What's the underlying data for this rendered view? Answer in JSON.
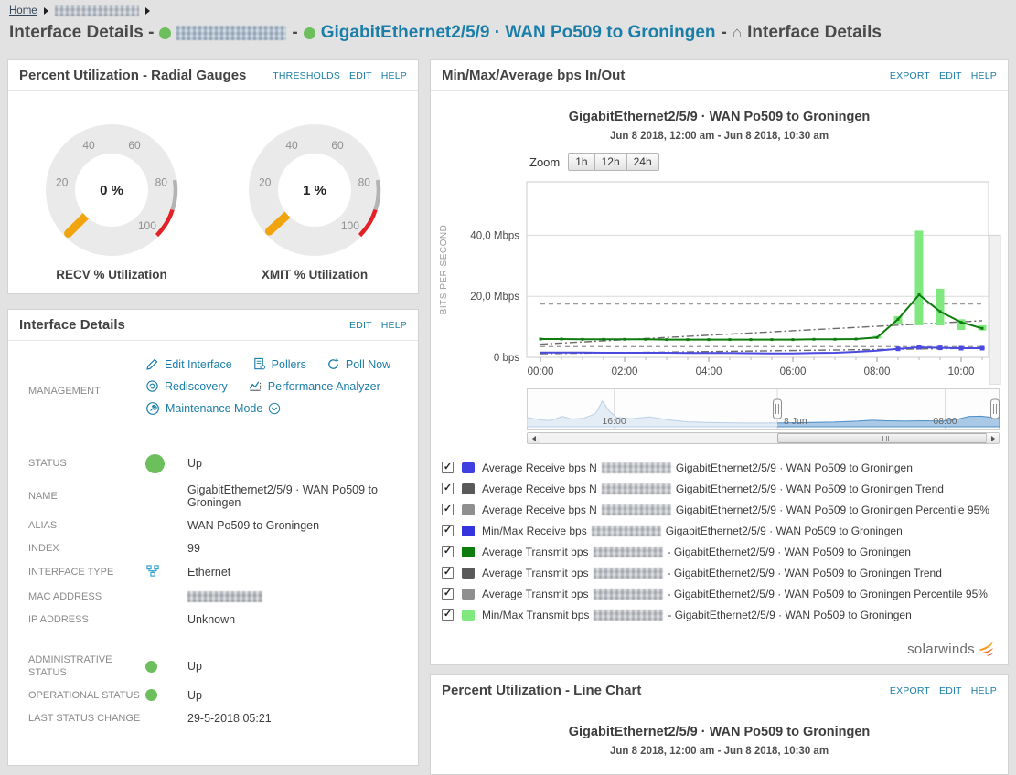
{
  "breadcrumb": {
    "home": "Home"
  },
  "page_title": {
    "prefix": "Interface Details - ",
    "sep": " - ",
    "interface": "GigabitEthernet2/5/9 · WAN Po509 to Groningen",
    "suffix": "Interface Details"
  },
  "panels": {
    "gauges": {
      "title": "Percent Utilization - Radial Gauges",
      "links": [
        "THRESHOLDS",
        "EDIT",
        "HELP"
      ],
      "ticks": [
        20,
        40,
        60,
        80,
        100
      ],
      "ring_color": "#eaeaea",
      "needle_color": "#f2a40f",
      "segments": [
        {
          "from": 80,
          "to": 90,
          "color": "#b3b3b3"
        },
        {
          "from": 90,
          "to": 100,
          "color": "#e42127"
        }
      ],
      "items": [
        {
          "value": 0,
          "value_label": "0 %",
          "caption": "RECV % Utilization"
        },
        {
          "value": 1,
          "value_label": "1 %",
          "caption": "XMIT % Utilization"
        }
      ]
    },
    "details": {
      "title": "Interface Details",
      "links": [
        "EDIT",
        "HELP"
      ],
      "management": {
        "label": "MANAGEMENT",
        "actions": [
          "Edit Interface",
          "Pollers",
          "Poll Now",
          "Rediscovery",
          "Performance Analyzer",
          "Maintenance Mode"
        ]
      },
      "rows": [
        {
          "label": "STATUS",
          "icon": "dot-big",
          "value": "Up",
          "cls": "row-status"
        },
        {
          "label": "NAME",
          "icon": "",
          "value": "GigabitEthernet2/5/9 · WAN Po509 to Groningen"
        },
        {
          "label": "ALIAS",
          "icon": "",
          "value": "WAN Po509 to Groningen"
        },
        {
          "label": "INDEX",
          "icon": "",
          "value": "99"
        },
        {
          "label": "INTERFACE TYPE",
          "icon": "ethernet",
          "value": "Ethernet"
        },
        {
          "label": "MAC ADDRESS",
          "icon": "",
          "value": "",
          "redacted": true
        },
        {
          "label": "IP ADDRESS",
          "icon": "",
          "value": "Unknown"
        },
        {
          "label": "ADMINISTRATIVE STATUS",
          "icon": "dot-sm",
          "value": "Up",
          "cls": "sect-gap"
        },
        {
          "label": "OPERATIONAL STATUS",
          "icon": "dot-sm",
          "value": "Up"
        },
        {
          "label": "LAST STATUS CHANGE",
          "icon": "",
          "value": "29-5-2018 05:21"
        }
      ]
    },
    "bps": {
      "title": "Min/Max/Average bps In/Out",
      "links": [
        "EXPORT",
        "EDIT",
        "HELP"
      ],
      "chart_title": "GigabitEthernet2/5/9 · WAN Po509 to Groningen",
      "chart_subtitle": "Jun 8 2018, 12:00 am - Jun 8 2018, 10:30 am",
      "zoom_label": "Zoom",
      "zoom_options": [
        "1h",
        "12h",
        "24h"
      ],
      "logo_text": "solarwinds",
      "legend": [
        {
          "checked": true,
          "color": "#4040e0",
          "prefix": "Average Receive bps N",
          "suffix": "GigabitEthernet2/5/9 · WAN Po509 to Groningen"
        },
        {
          "checked": true,
          "color": "#595959",
          "prefix": "Average Receive bps N",
          "suffix": "GigabitEthernet2/5/9 · WAN Po509 to Groningen Trend"
        },
        {
          "checked": true,
          "color": "#8f8f8f",
          "prefix": "Average Receive bps N",
          "suffix": "GigabitEthernet2/5/9 · WAN Po509 to Groningen Percentile 95%"
        },
        {
          "checked": true,
          "color": "#3434dd",
          "prefix": "Min/Max Receive bps ",
          "suffix": "GigabitEthernet2/5/9 · WAN Po509 to Groningen"
        },
        {
          "checked": true,
          "color": "#0c7c0c",
          "prefix": "Average Transmit bps ",
          "suffix": "- GigabitEthernet2/5/9 · WAN Po509 to Groningen"
        },
        {
          "checked": true,
          "color": "#595959",
          "prefix": "Average Transmit bps ",
          "suffix": "- GigabitEthernet2/5/9 · WAN Po509 to Groningen Trend"
        },
        {
          "checked": true,
          "color": "#8f8f8f",
          "prefix": "Average Transmit bps ",
          "suffix": "- GigabitEthernet2/5/9 · WAN Po509 to Groningen Percentile 95%"
        },
        {
          "checked": true,
          "color": "#7fe97f",
          "prefix": "Min/Max Transmit bps",
          "suffix": "- GigabitEthernet2/5/9 · WAN Po509 to Groningen"
        }
      ]
    },
    "util": {
      "title": "Percent Utilization - Line Chart",
      "links": [
        "EXPORT",
        "EDIT",
        "HELP"
      ],
      "chart_title": "GigabitEthernet2/5/9 · WAN Po509 to Groningen",
      "chart_subtitle": "Jun 8 2018, 12:00 am - Jun 8 2018, 10:30 am"
    }
  },
  "chart_data": [
    {
      "type": "line",
      "title": "GigabitEthernet2/5/9 · WAN Po509 to Groningen",
      "subtitle": "Jun 8 2018, 12:00 am - Jun 8 2018, 10:30 am",
      "ylabel": "BITS PER SECOND",
      "ylim": [
        0,
        57.5
      ],
      "yticks": [
        {
          "v": 0,
          "label": "0 bps"
        },
        {
          "v": 20,
          "label": "20,0 Mbps"
        },
        {
          "v": 40,
          "label": "40,0 Mbps"
        }
      ],
      "xlim_hours": [
        0,
        10.5
      ],
      "xticks": [
        {
          "t": 0,
          "label": "00:00"
        },
        {
          "t": 2,
          "label": "02:00"
        },
        {
          "t": 4,
          "label": "04:00"
        },
        {
          "t": 6,
          "label": "06:00"
        },
        {
          "t": 8,
          "label": "08:00"
        },
        {
          "t": 10,
          "label": "10:00"
        }
      ],
      "grid": true,
      "legend_position": "bottom",
      "units": "Mbps",
      "series": [
        {
          "name": "Average Transmit bps Percentile 95%",
          "type": "line",
          "dash": "dash",
          "color": "#9b9b9b",
          "x": [
            0,
            10.5
          ],
          "values": [
            17.5,
            17.5
          ]
        },
        {
          "name": "Average Receive bps Percentile 95%",
          "type": "line",
          "dash": "dash",
          "color": "#9b9b9b",
          "x": [
            0,
            10.5
          ],
          "values": [
            3.5,
            3.5
          ]
        },
        {
          "name": "Average Transmit bps Trend",
          "type": "line",
          "dash": "dashdot",
          "color": "#6b6b6b",
          "x": [
            0,
            10.5
          ],
          "values": [
            4.3,
            12.0
          ]
        },
        {
          "name": "Average Receive bps Trend",
          "type": "line",
          "dash": "dashdot",
          "color": "#6b6b6b",
          "x": [
            0,
            10.5
          ],
          "values": [
            1.2,
            3.0
          ]
        },
        {
          "name": "Min/Max Transmit bps",
          "type": "columnrange",
          "color": "#7fe97f",
          "barwidth": 9,
          "points": [
            [
              8,
              6.2,
              7.0
            ],
            [
              8.5,
              11.0,
              13.5
            ],
            [
              9,
              10.5,
              41.5
            ],
            [
              9.5,
              10.5,
              22.5
            ],
            [
              10,
              9.0,
              12.5
            ],
            [
              10.5,
              8.8,
              10.5
            ]
          ]
        },
        {
          "name": "Min/Max Receive bps",
          "type": "columnrange",
          "color": "#3434dd",
          "barwidth": 6,
          "points": [
            [
              9,
              2.9,
              3.6
            ],
            [
              9.5,
              2.8,
              3.3
            ],
            [
              10,
              2.8,
              3.2
            ],
            [
              10.5,
              2.9,
              3.1
            ]
          ]
        },
        {
          "name": "Average Transmit bps",
          "type": "line",
          "dash": "solid",
          "color": "#0e7d0e",
          "markers": "all",
          "x": [
            0,
            0.5,
            1,
            1.5,
            2,
            2.5,
            3,
            3.5,
            4,
            4.5,
            5,
            5.5,
            6,
            6.5,
            7,
            7.5,
            8,
            8.5,
            9,
            9.5,
            10,
            10.5
          ],
          "values": [
            6.0,
            6.0,
            5.9,
            5.9,
            5.9,
            5.9,
            5.8,
            5.8,
            5.8,
            5.8,
            5.8,
            5.8,
            5.8,
            5.9,
            5.9,
            6.0,
            6.5,
            12.5,
            20.5,
            15.0,
            11.5,
            9.5
          ]
        },
        {
          "name": "Average Receive bps",
          "type": "line",
          "dash": "solid",
          "color": "#4a4ae0",
          "markers": "tail",
          "x": [
            0,
            0.5,
            1,
            1.5,
            2,
            2.5,
            3,
            3.5,
            4,
            4.5,
            5,
            5.5,
            6,
            6.5,
            7,
            7.5,
            8,
            8.5,
            9,
            9.5,
            10,
            10.5
          ],
          "values": [
            1.6,
            1.6,
            1.55,
            1.5,
            1.5,
            1.5,
            1.5,
            1.45,
            1.4,
            1.4,
            1.35,
            1.3,
            1.3,
            1.4,
            1.5,
            1.8,
            2.2,
            2.8,
            3.3,
            3.1,
            3.0,
            3.0
          ]
        }
      ],
      "navigator": {
        "selected": [
          0.53,
          1.0
        ],
        "labels": [
          {
            "f": 0.185,
            "text": "16:00"
          },
          {
            "f": 0.53,
            "text": "8 Jun"
          },
          {
            "f": 0.885,
            "text": "08:00"
          }
        ],
        "points": [
          [
            0,
            0.3
          ],
          [
            0.03,
            0.22
          ],
          [
            0.05,
            0.2
          ],
          [
            0.075,
            0.33
          ],
          [
            0.095,
            0.25
          ],
          [
            0.12,
            0.27
          ],
          [
            0.145,
            0.42
          ],
          [
            0.16,
            0.82
          ],
          [
            0.175,
            0.5
          ],
          [
            0.19,
            0.3
          ],
          [
            0.22,
            0.26
          ],
          [
            0.26,
            0.32
          ],
          [
            0.3,
            0.22
          ],
          [
            0.34,
            0.16
          ],
          [
            0.38,
            0.14
          ],
          [
            0.42,
            0.13
          ],
          [
            0.46,
            0.12
          ],
          [
            0.5,
            0.12
          ],
          [
            0.53,
            0.12
          ],
          [
            0.57,
            0.13
          ],
          [
            0.61,
            0.14
          ],
          [
            0.65,
            0.15
          ],
          [
            0.7,
            0.18
          ],
          [
            0.73,
            0.21
          ],
          [
            0.76,
            0.19
          ],
          [
            0.8,
            0.18
          ],
          [
            0.84,
            0.19
          ],
          [
            0.88,
            0.18
          ],
          [
            0.91,
            0.24
          ],
          [
            0.935,
            0.33
          ],
          [
            0.96,
            0.34
          ],
          [
            0.98,
            0.31
          ],
          [
            1,
            0.3
          ]
        ]
      }
    },
    {
      "type": "line",
      "title": "GigabitEthernet2/5/9 · WAN Po509 to Groningen",
      "subtitle": "Jun 8 2018, 12:00 am - Jun 8 2018, 10:30 am",
      "note": "chart body cut off at bottom of screenshot"
    }
  ]
}
